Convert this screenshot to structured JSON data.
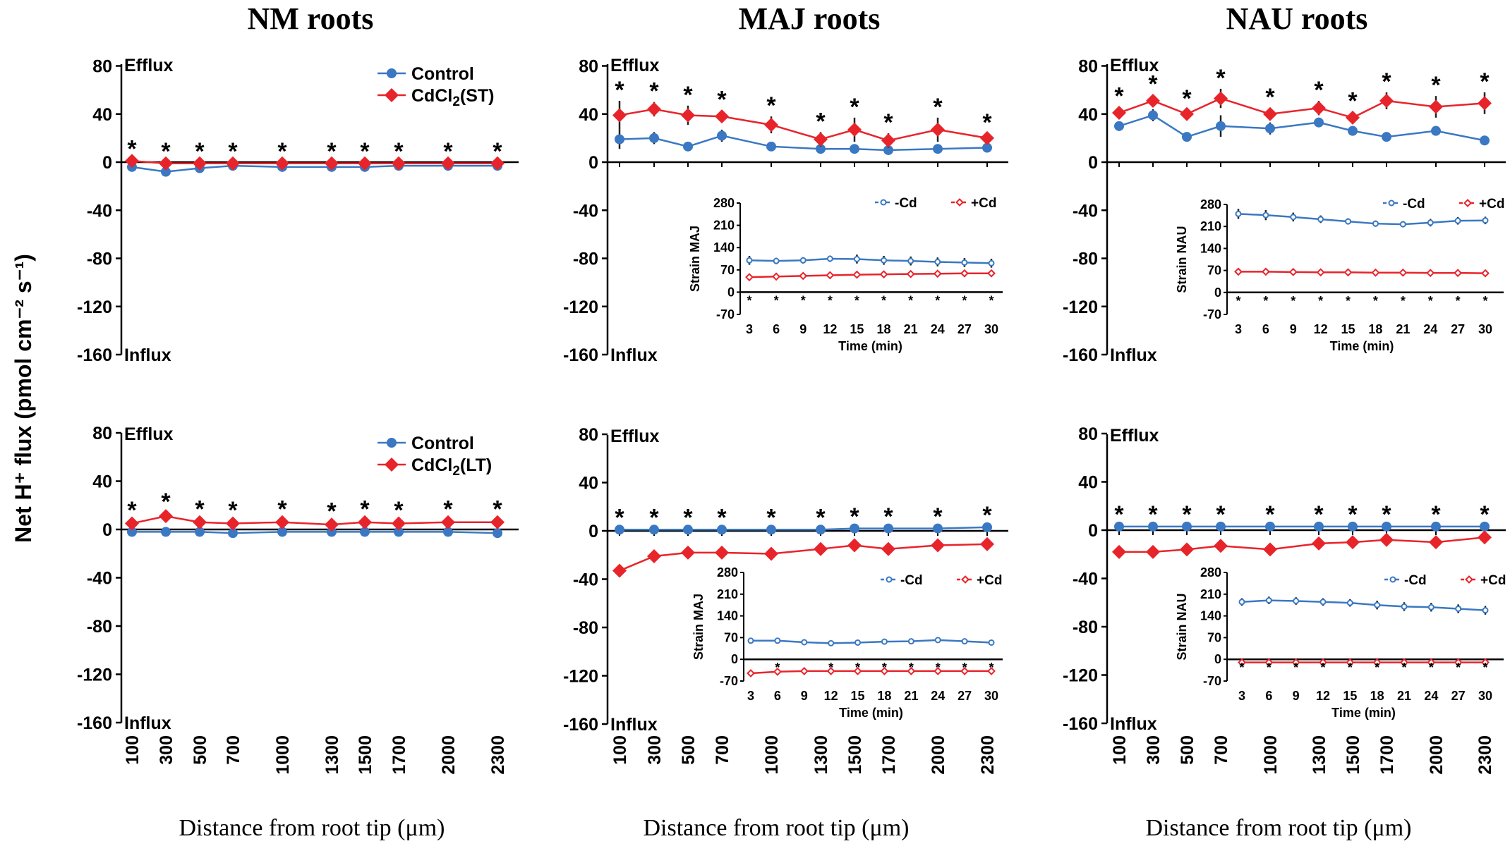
{
  "figure": {
    "ylabel": "Net H⁺ flux (pmol cm⁻² s⁻¹)",
    "xlabel": "Distance from root tip (μm)",
    "efflux_label": "Efflux",
    "influx_label": "Influx"
  },
  "colors": {
    "control": "#3a78c3",
    "cd": "#e8242b",
    "axis": "#000000"
  },
  "chart_data": [
    {
      "id": "nm-st",
      "type": "line",
      "title": "NM roots",
      "xlabel": "Distance from root tip (μm)",
      "ylabel": "Net H⁺ flux (pmol cm⁻² s⁻¹)",
      "categories": [
        "100",
        "300",
        "500",
        "700",
        "1000",
        "1300",
        "1500",
        "1700",
        "2000",
        "2300"
      ],
      "ylim": [
        -160,
        80
      ],
      "yticks": [
        80,
        40,
        0,
        -40,
        -80,
        -120,
        -160
      ],
      "series": [
        {
          "name": "Control",
          "values": [
            -4,
            -8,
            -5,
            -3,
            -4,
            -4,
            -4,
            -3,
            -3,
            -3
          ],
          "errors": [
            1,
            1,
            1,
            1,
            1,
            1,
            1,
            1,
            1,
            1
          ]
        },
        {
          "name": "CdCl2(ST)",
          "values": [
            1,
            -1,
            -1,
            -1,
            -1,
            -1,
            -1,
            -1,
            -1,
            -1
          ],
          "errors": [
            1,
            1,
            1,
            1,
            1,
            1,
            1,
            1,
            1,
            1
          ]
        }
      ],
      "significance": [
        "*",
        "*",
        "*",
        "*",
        "*",
        "*",
        "*",
        "*",
        "*",
        "*"
      ],
      "inset": null
    },
    {
      "id": "maj-st",
      "type": "line",
      "title": "MAJ roots",
      "xlabel": "Distance from root tip (μm)",
      "ylabel": "Net H⁺ flux (pmol cm⁻² s⁻¹)",
      "categories": [
        "100",
        "300",
        "500",
        "700",
        "1000",
        "1300",
        "1500",
        "1700",
        "2000",
        "2300"
      ],
      "ylim": [
        -160,
        80
      ],
      "yticks": [
        80,
        40,
        0,
        -40,
        -80,
        -120,
        -160
      ],
      "series": [
        {
          "name": "Control",
          "values": [
            19,
            20,
            13,
            22,
            13,
            11,
            11,
            10,
            11,
            12
          ],
          "errors": [
            8,
            5,
            3,
            5,
            3,
            2,
            2,
            2,
            2,
            2
          ]
        },
        {
          "name": "CdCl2(ST)",
          "values": [
            39,
            44,
            39,
            38,
            31,
            19,
            27,
            18,
            27,
            20
          ],
          "errors": [
            12,
            6,
            8,
            5,
            7,
            6,
            10,
            6,
            10,
            4
          ]
        }
      ],
      "significance": [
        "*",
        "*",
        "*",
        "*",
        "*",
        "*",
        "*",
        "*",
        "*",
        "*"
      ],
      "inset": {
        "type": "line",
        "ylabel": "Strain MAJ",
        "xlabel": "Time (min)",
        "x": [
          "3",
          "6",
          "9",
          "12",
          "15",
          "18",
          "21",
          "24",
          "27",
          "30"
        ],
        "ylim": [
          -70,
          280
        ],
        "yticks": [
          280,
          210,
          140,
          70,
          0,
          -70
        ],
        "series": [
          {
            "name": "-Cd",
            "values": [
              100,
              98,
              100,
              105,
              104,
              100,
              98,
              95,
              93,
              91
            ],
            "errors": [
              14,
              10,
              10,
              10,
              14,
              14,
              14,
              14,
              14,
              14
            ]
          },
          {
            "name": "+Cd",
            "values": [
              47,
              49,
              51,
              53,
              55,
              56,
              57,
              58,
              59,
              59
            ],
            "errors": [
              4,
              4,
              4,
              4,
              4,
              4,
              4,
              4,
              4,
              4
            ]
          }
        ],
        "significance": [
          "*",
          "*",
          "*",
          "*",
          "*",
          "*",
          "*",
          "*",
          "*",
          "*"
        ]
      }
    },
    {
      "id": "nau-st",
      "type": "line",
      "title": "NAU roots",
      "xlabel": "Distance from root tip (μm)",
      "ylabel": "Net H⁺ flux (pmol cm⁻² s⁻¹)",
      "categories": [
        "100",
        "300",
        "500",
        "700",
        "1000",
        "1300",
        "1500",
        "1700",
        "2000",
        "2300"
      ],
      "ylim": [
        -160,
        80
      ],
      "yticks": [
        80,
        40,
        0,
        -40,
        -80,
        -120,
        -160
      ],
      "series": [
        {
          "name": "Control",
          "values": [
            30,
            39,
            21,
            30,
            28,
            33,
            26,
            21,
            26,
            18
          ],
          "errors": [
            4,
            5,
            3,
            9,
            5,
            4,
            4,
            3,
            4,
            3
          ]
        },
        {
          "name": "CdCl2(ST)",
          "values": [
            41,
            51,
            40,
            53,
            40,
            45,
            37,
            51,
            46,
            49
          ],
          "errors": [
            5,
            5,
            4,
            8,
            5,
            6,
            5,
            7,
            9,
            9
          ]
        }
      ],
      "significance": [
        "*",
        "*",
        "*",
        "*",
        "*",
        "*",
        "*",
        "*",
        "*",
        "*"
      ],
      "inset": {
        "type": "line",
        "ylabel": "Strain NAU",
        "xlabel": "Time (min)",
        "x": [
          "3",
          "6",
          "9",
          "12",
          "15",
          "18",
          "21",
          "24",
          "27",
          "30"
        ],
        "ylim": [
          -70,
          280
        ],
        "yticks": [
          280,
          210,
          140,
          70,
          0,
          -70
        ],
        "series": [
          {
            "name": "-Cd",
            "values": [
              250,
              246,
              240,
              233,
              226,
              219,
              217,
              222,
              228,
              229
            ],
            "errors": [
              16,
              16,
              14,
              12,
              10,
              10,
              10,
              12,
              12,
              12
            ]
          },
          {
            "name": "+Cd",
            "values": [
              66,
              66,
              65,
              64,
              64,
              63,
              63,
              62,
              62,
              61
            ],
            "errors": [
              4,
              4,
              4,
              4,
              4,
              4,
              4,
              4,
              4,
              4
            ]
          }
        ],
        "significance": [
          "*",
          "*",
          "*",
          "*",
          "*",
          "*",
          "*",
          "*",
          "*",
          "*"
        ]
      }
    },
    {
      "id": "nm-lt",
      "type": "line",
      "title": "",
      "xlabel": "Distance from root tip (μm)",
      "ylabel": "Net H⁺ flux (pmol cm⁻² s⁻¹)",
      "categories": [
        "100",
        "300",
        "500",
        "700",
        "1000",
        "1300",
        "1500",
        "1700",
        "2000",
        "2300"
      ],
      "ylim": [
        -160,
        80
      ],
      "yticks": [
        80,
        40,
        0,
        -40,
        -80,
        -120,
        -160
      ],
      "series": [
        {
          "name": "Control",
          "values": [
            -2,
            -2,
            -2,
            -3,
            -2,
            -2,
            -2,
            -2,
            -2,
            -3
          ],
          "errors": [
            1,
            1,
            1,
            1,
            1,
            1,
            1,
            1,
            1,
            1
          ]
        },
        {
          "name": "CdCl2(LT)",
          "values": [
            5,
            11,
            6,
            5,
            6,
            4,
            6,
            5,
            6,
            6
          ],
          "errors": [
            2,
            3,
            2,
            2,
            2,
            2,
            2,
            2,
            2,
            2
          ]
        }
      ],
      "significance": [
        "*",
        "*",
        "*",
        "*",
        "*",
        "*",
        "*",
        "*",
        "*",
        "*"
      ],
      "inset": null
    },
    {
      "id": "maj-lt",
      "type": "line",
      "title": "",
      "xlabel": "Distance from root tip (μm)",
      "ylabel": "Net H⁺ flux (pmol cm⁻² s⁻¹)",
      "categories": [
        "100",
        "300",
        "500",
        "700",
        "1000",
        "1300",
        "1500",
        "1700",
        "2000",
        "2300"
      ],
      "ylim": [
        -160,
        80
      ],
      "yticks": [
        80,
        40,
        0,
        -40,
        -80,
        -120,
        -160
      ],
      "series": [
        {
          "name": "Control",
          "values": [
            1,
            1,
            1,
            1,
            1,
            1,
            2,
            2,
            2,
            3
          ],
          "errors": [
            1,
            1,
            1,
            1,
            1,
            1,
            1,
            1,
            1,
            1
          ]
        },
        {
          "name": "CdCl2(LT)",
          "values": [
            -33,
            -21,
            -18,
            -18,
            -19,
            -15,
            -12,
            -15,
            -12,
            -11
          ],
          "errors": [
            3,
            3,
            3,
            3,
            4,
            4,
            3,
            3,
            3,
            3
          ]
        }
      ],
      "significance": [
        "*",
        "*",
        "*",
        "*",
        "*",
        "*",
        "*",
        "*",
        "*",
        "*"
      ],
      "inset": {
        "type": "line",
        "ylabel": "Strain MAJ",
        "xlabel": "Time (min)",
        "x": [
          "3",
          "6",
          "9",
          "12",
          "15",
          "18",
          "21",
          "24",
          "27",
          "30"
        ],
        "ylim": [
          -70,
          280
        ],
        "yticks": [
          280,
          210,
          140,
          70,
          0,
          -70
        ],
        "series": [
          {
            "name": "-Cd",
            "values": [
              60,
              60,
              55,
              52,
              54,
              57,
              58,
              62,
              58,
              54
            ],
            "errors": [
              5,
              5,
              4,
              4,
              4,
              4,
              4,
              6,
              5,
              5
            ]
          },
          {
            "name": "+Cd",
            "values": [
              -45,
              -40,
              -38,
              -38,
              -38,
              -38,
              -38,
              -38,
              -38,
              -38
            ],
            "errors": [
              3,
              3,
              3,
              3,
              3,
              3,
              3,
              3,
              3,
              3
            ]
          }
        ],
        "significance": [
          "",
          "*",
          "",
          "*",
          "*",
          "*",
          "*",
          "*",
          "*",
          "*"
        ]
      }
    },
    {
      "id": "nau-lt",
      "type": "line",
      "title": "",
      "xlabel": "Distance from root tip (μm)",
      "ylabel": "Net H⁺ flux (pmol cm⁻² s⁻¹)",
      "categories": [
        "100",
        "300",
        "500",
        "700",
        "1000",
        "1300",
        "1500",
        "1700",
        "2000",
        "2300"
      ],
      "ylim": [
        -160,
        80
      ],
      "yticks": [
        80,
        40,
        0,
        -40,
        -80,
        -120,
        -160
      ],
      "series": [
        {
          "name": "Control",
          "values": [
            3,
            3,
            3,
            3,
            3,
            3,
            3,
            3,
            3,
            3
          ],
          "errors": [
            1,
            1,
            1,
            1,
            1,
            1,
            1,
            1,
            1,
            1
          ]
        },
        {
          "name": "CdCl2(LT)",
          "values": [
            -18,
            -18,
            -16,
            -13,
            -16,
            -11,
            -10,
            -8,
            -10,
            -6
          ],
          "errors": [
            2,
            2,
            2,
            2,
            2,
            2,
            2,
            2,
            2,
            2
          ]
        }
      ],
      "significance": [
        "*",
        "*",
        "*",
        "*",
        "*",
        "*",
        "*",
        "*",
        "*",
        "*"
      ],
      "inset": {
        "type": "line",
        "ylabel": "Strain NAU",
        "xlabel": "Time (min)",
        "x": [
          "3",
          "6",
          "9",
          "12",
          "15",
          "18",
          "21",
          "24",
          "27",
          "30"
        ],
        "ylim": [
          -70,
          280
        ],
        "yticks": [
          280,
          210,
          140,
          70,
          0,
          -70
        ],
        "series": [
          {
            "name": "-Cd",
            "values": [
              185,
              190,
              188,
              185,
              182,
              175,
              170,
              168,
              163,
              158
            ],
            "errors": [
              12,
              12,
              12,
              12,
              12,
              14,
              14,
              14,
              14,
              14
            ]
          },
          {
            "name": "+Cd",
            "values": [
              -10,
              -10,
              -10,
              -10,
              -10,
              -10,
              -10,
              -10,
              -10,
              -10
            ],
            "errors": [
              2,
              2,
              2,
              2,
              2,
              2,
              2,
              2,
              2,
              2
            ]
          }
        ],
        "significance": [
          "*",
          "*",
          "*",
          "*",
          "*",
          "*",
          "*",
          "*",
          "*",
          "*"
        ]
      }
    }
  ]
}
